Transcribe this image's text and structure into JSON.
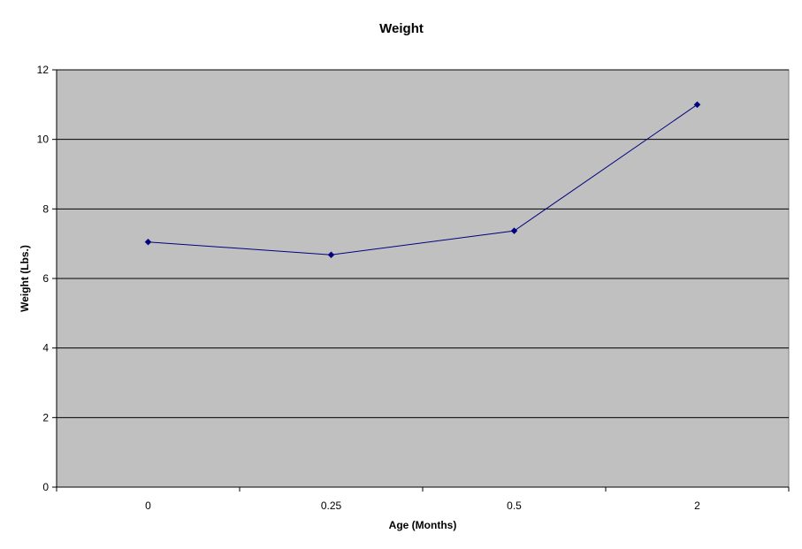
{
  "chart_data": {
    "type": "line",
    "title": "Weight",
    "xlabel": "Age (Months)",
    "ylabel": "Weight (Lbs.)",
    "categories": [
      "0",
      "0.25",
      "0.5",
      "2"
    ],
    "series": [
      {
        "values": [
          7.05,
          6.68,
          7.37,
          11.0
        ],
        "color": "#000080"
      }
    ],
    "ylim": [
      0,
      12
    ],
    "yticks": [
      "0",
      "2",
      "4",
      "6",
      "8",
      "10",
      "12"
    ],
    "grid": "horizontal",
    "legend": "none",
    "plot_background": "#c0c0c0"
  }
}
